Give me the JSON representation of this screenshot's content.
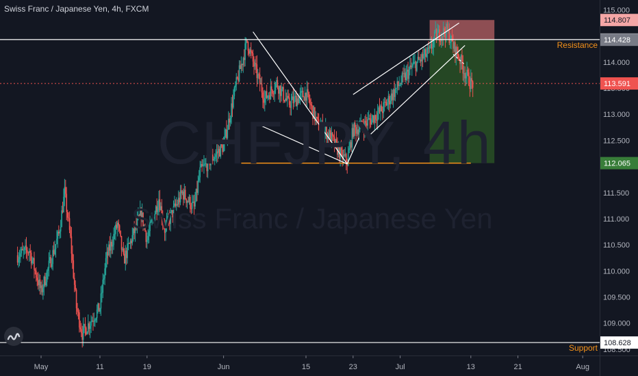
{
  "header": {
    "title": "Swiss Franc / Japanese Yen, 4h, FXCM"
  },
  "watermark": {
    "symbol": "CHFJPY, 4h",
    "name": "Swiss Franc / Japanese Yen"
  },
  "colors": {
    "background": "#131722",
    "up": "#26a69a",
    "down": "#ef5350",
    "text": "#b2b5be",
    "orange": "#f7931a",
    "white": "#ffffff"
  },
  "chart_data": {
    "type": "candlestick",
    "title": "Swiss Franc / Japanese Yen, 4h, FXCM",
    "y_range": [
      108.38,
      115.19
    ],
    "y_ticks": [
      "115.000",
      "114.500",
      "114.000",
      "113.500",
      "113.000",
      "112.500",
      "112.000",
      "111.500",
      "111.000",
      "110.500",
      "110.000",
      "109.500",
      "109.000",
      "108.500"
    ],
    "x_ticks": [
      "May",
      "11",
      "19",
      "Jun",
      "15",
      "23",
      "Jul",
      "13",
      "21",
      "Aug"
    ],
    "price_labels": [
      {
        "label": "114.807",
        "value": 114.807,
        "style": "stop"
      },
      {
        "label": "114.432",
        "value": 114.432,
        "style": "line"
      },
      {
        "label": "114.428",
        "value": 114.428,
        "style": "gray"
      },
      {
        "label": "113.591",
        "value": 113.591,
        "style": "last"
      },
      {
        "label": "112.065",
        "value": 112.065,
        "style": "target"
      },
      {
        "label": "108.628",
        "value": 108.628,
        "style": "line"
      }
    ],
    "levels": [
      {
        "name": "Resistance",
        "value": 114.432
      },
      {
        "name": "Support",
        "value": 108.628
      }
    ],
    "last_price": 113.591,
    "neckline_value": 112.065,
    "position": {
      "entry": 114.432,
      "stop": 114.807,
      "target": 112.065
    },
    "price_path": [
      [
        "2020-04-27",
        110.3
      ],
      [
        "2020-04-29",
        110.4
      ],
      [
        "2020-05-01",
        109.6
      ],
      [
        "2020-05-04",
        110.7
      ],
      [
        "2020-05-05",
        111.5
      ],
      [
        "2020-05-06",
        110.6
      ],
      [
        "2020-05-07",
        109.3
      ],
      [
        "2020-05-08",
        108.8
      ],
      [
        "2020-05-11",
        109.3
      ],
      [
        "2020-05-12",
        110.2
      ],
      [
        "2020-05-14",
        110.9
      ],
      [
        "2020-05-15",
        110.2
      ],
      [
        "2020-05-18",
        111.1
      ],
      [
        "2020-05-19",
        110.6
      ],
      [
        "2020-05-21",
        111.4
      ],
      [
        "2020-05-22",
        110.8
      ],
      [
        "2020-05-25",
        111.5
      ],
      [
        "2020-05-27",
        111.2
      ],
      [
        "2020-05-28",
        111.9
      ],
      [
        "2020-06-01",
        112.4
      ],
      [
        "2020-06-03",
        113.5
      ],
      [
        "2020-06-05",
        114.4
      ],
      [
        "2020-06-06",
        114.0
      ],
      [
        "2020-06-08",
        113.3
      ],
      [
        "2020-06-10",
        113.6
      ],
      [
        "2020-06-12",
        113.2
      ],
      [
        "2020-06-15",
        113.4
      ],
      [
        "2020-06-17",
        112.8
      ],
      [
        "2020-06-19",
        112.6
      ],
      [
        "2020-06-21",
        112.2
      ],
      [
        "2020-06-22",
        112.1
      ],
      [
        "2020-06-23",
        112.7
      ],
      [
        "2020-06-25",
        112.8
      ],
      [
        "2020-06-28",
        113.1
      ],
      [
        "2020-07-01",
        113.6
      ],
      [
        "2020-07-03",
        113.9
      ],
      [
        "2020-07-06",
        114.2
      ],
      [
        "2020-07-07",
        114.5
      ],
      [
        "2020-07-09",
        114.6
      ],
      [
        "2020-07-10",
        114.3
      ],
      [
        "2020-07-11",
        114.1
      ],
      [
        "2020-07-12",
        113.8
      ],
      [
        "2020-07-13",
        113.59
      ]
    ]
  }
}
